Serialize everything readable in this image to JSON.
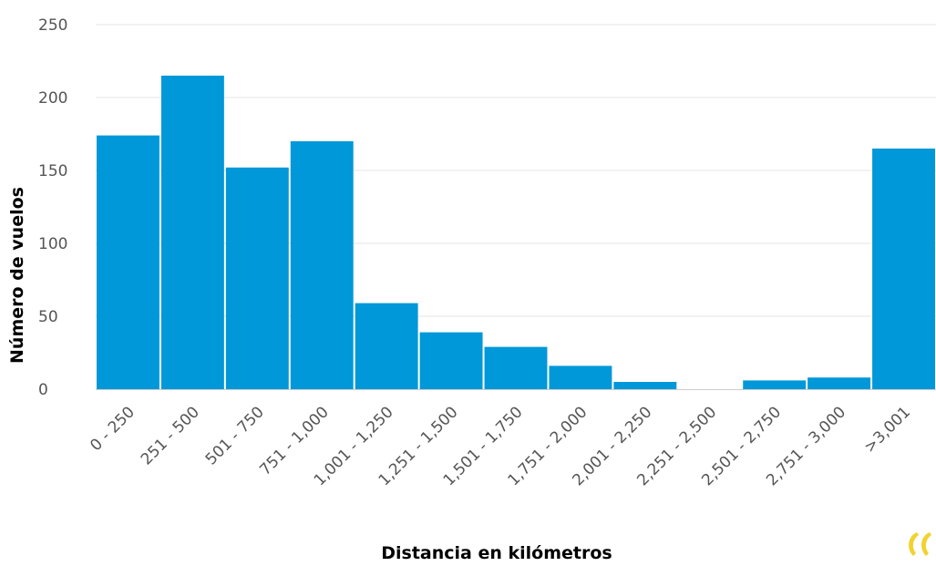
{
  "chart_data": {
    "type": "bar",
    "title": "",
    "xlabel": "Distancia en kilómetros",
    "ylabel": "Número de vuelos",
    "categories": [
      "0 - 250",
      "251 - 500",
      "501 - 750",
      "751 - 1,000",
      "1,001 - 1,250",
      "1,251 - 1,500",
      "1,501 - 1,750",
      "1,751 - 2,000",
      "2,001 - 2,250",
      "2,251 - 2,500",
      "2,501 - 2,750",
      "2,751 - 3,000",
      ">3,001"
    ],
    "values": [
      174,
      215,
      152,
      170,
      59,
      39,
      29,
      16,
      5,
      0,
      6,
      8,
      165
    ],
    "ylim": [
      0,
      250
    ],
    "yticks": [
      0,
      50,
      100,
      150,
      200,
      250
    ],
    "grid": true,
    "bar_color": "#0098d8",
    "grid_color": "#e6e6e6"
  },
  "logo": {
    "name": "quote-logo-icon",
    "color": "#f2d22e"
  }
}
